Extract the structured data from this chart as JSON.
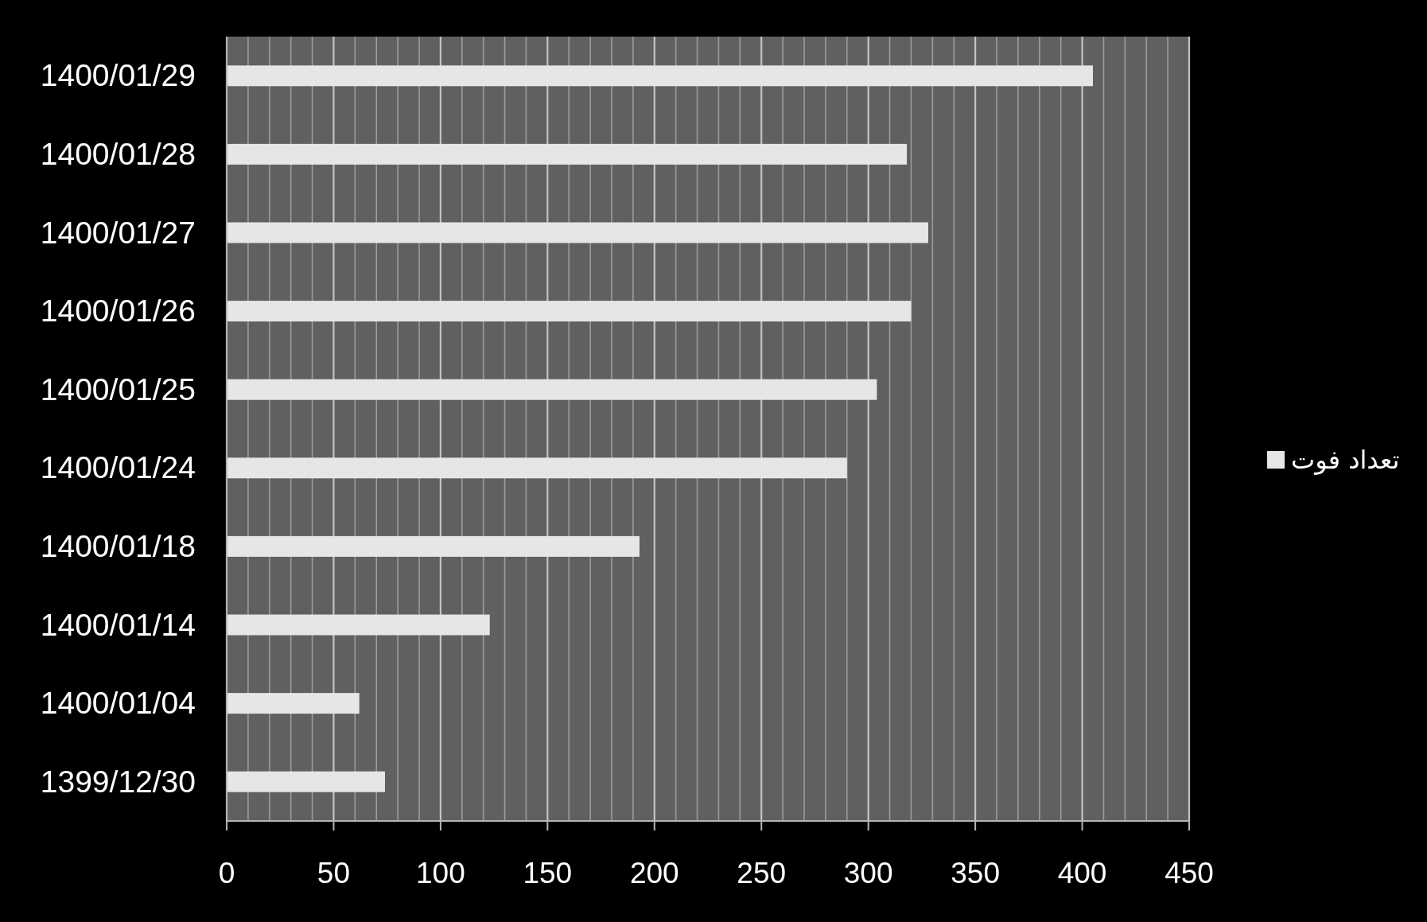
{
  "chart_data": {
    "type": "bar",
    "orientation": "horizontal",
    "categories": [
      "1400/01/29",
      "1400/01/28",
      "1400/01/27",
      "1400/01/26",
      "1400/01/25",
      "1400/01/24",
      "1400/01/18",
      "1400/01/14",
      "1400/01/04",
      "1399/12/30"
    ],
    "series": [
      {
        "name": "تعداد فوت",
        "color": "#e6e6e6",
        "values": [
          405,
          318,
          328,
          320,
          304,
          290,
          193,
          123,
          62,
          74
        ]
      }
    ],
    "xlim": [
      0,
      450
    ],
    "xticks": [
      0,
      50,
      100,
      150,
      200,
      250,
      300,
      350,
      400,
      450
    ],
    "grid": "x",
    "legend": "right"
  }
}
